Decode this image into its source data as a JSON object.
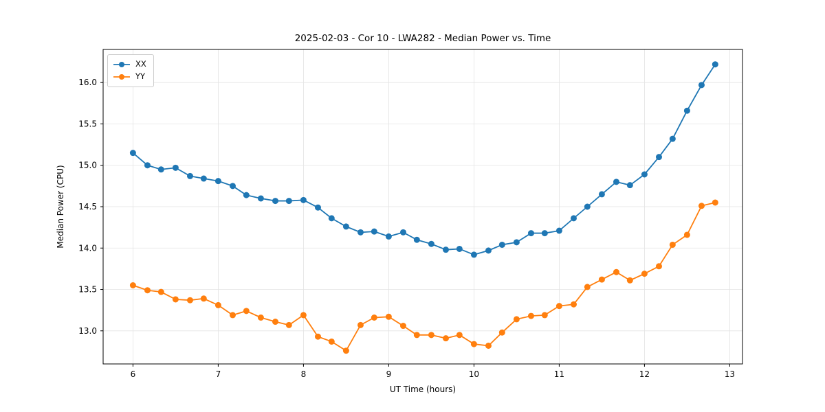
{
  "chart_data": {
    "type": "line",
    "title": "2025-02-03 - Cor 10 - LWA282 - Median Power vs. Time",
    "xlabel": "UT Time (hours)",
    "ylabel": "Median Power (CPU)",
    "xlim": [
      5.65,
      13.15
    ],
    "ylim": [
      12.6,
      16.4
    ],
    "grid": true,
    "legend_position": "upper left",
    "xticks": [
      6,
      7,
      8,
      9,
      10,
      11,
      12,
      13
    ],
    "xtick_labels": [
      "6",
      "7",
      "8",
      "9",
      "10",
      "11",
      "12",
      "13"
    ],
    "yticks": [
      13.0,
      13.5,
      14.0,
      14.5,
      15.0,
      15.5,
      16.0
    ],
    "ytick_labels": [
      "13.0",
      "13.5",
      "14.0",
      "14.5",
      "15.0",
      "15.5",
      "16.0"
    ],
    "x": [
      6.0,
      6.17,
      6.33,
      6.5,
      6.67,
      6.83,
      7.0,
      7.17,
      7.33,
      7.5,
      7.67,
      7.83,
      8.0,
      8.17,
      8.33,
      8.5,
      8.67,
      8.83,
      9.0,
      9.17,
      9.33,
      9.5,
      9.67,
      9.83,
      10.0,
      10.17,
      10.33,
      10.5,
      10.67,
      10.83,
      11.0,
      11.17,
      11.33,
      11.5,
      11.67,
      11.83,
      12.0,
      12.17,
      12.33,
      12.5,
      12.67,
      12.83
    ],
    "series": [
      {
        "name": "XX",
        "color": "#1f77b4",
        "values": [
          15.15,
          15.0,
          14.95,
          14.97,
          14.87,
          14.84,
          14.81,
          14.75,
          14.64,
          14.6,
          14.57,
          14.57,
          14.58,
          14.49,
          14.36,
          14.26,
          14.19,
          14.2,
          14.14,
          14.19,
          14.1,
          14.05,
          13.98,
          13.99,
          13.92,
          13.97,
          14.04,
          14.07,
          14.18,
          14.18,
          14.21,
          14.36,
          14.5,
          14.65,
          14.8,
          14.76,
          14.89,
          15.1,
          15.32,
          15.66,
          15.97,
          16.22
        ]
      },
      {
        "name": "YY",
        "color": "#ff7f0e",
        "values": [
          13.55,
          13.49,
          13.47,
          13.38,
          13.37,
          13.39,
          13.31,
          13.19,
          13.24,
          13.16,
          13.11,
          13.07,
          13.19,
          12.93,
          12.87,
          12.76,
          13.07,
          13.16,
          13.17,
          13.06,
          12.95,
          12.95,
          12.91,
          12.95,
          12.84,
          12.82,
          12.98,
          13.14,
          13.18,
          13.19,
          13.3,
          13.32,
          13.53,
          13.62,
          13.71,
          13.61,
          13.69,
          13.78,
          14.04,
          14.16,
          14.51,
          14.55
        ]
      }
    ]
  }
}
